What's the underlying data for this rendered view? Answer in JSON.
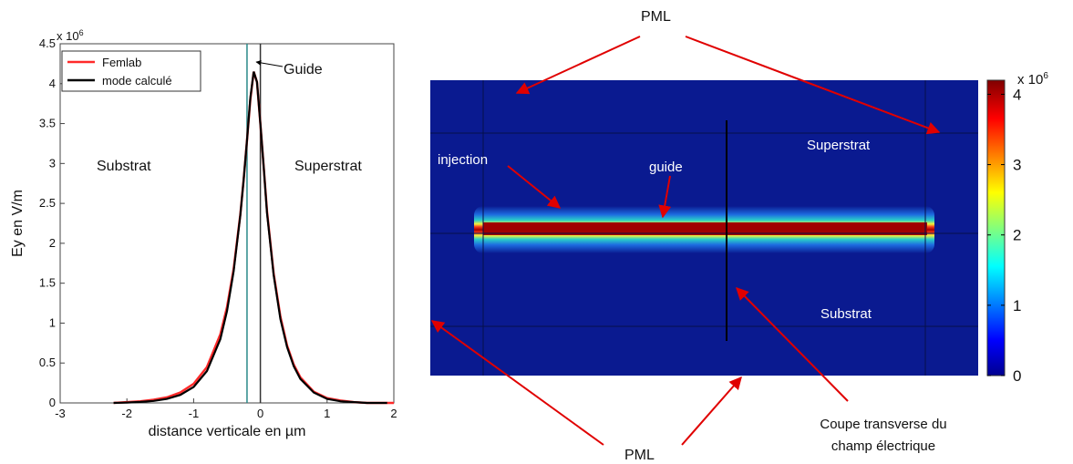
{
  "chart_data": [
    {
      "type": "line",
      "xlabel": "distance verticale en µm",
      "ylabel": "Ey en V/m",
      "y_multiplier": "x 10",
      "y_multiplier_exp": "6",
      "xlim": [
        -3,
        2
      ],
      "ylim": [
        0,
        4.5
      ],
      "x_ticks": [
        "-3",
        "-2",
        "-1",
        "0",
        "1",
        "2"
      ],
      "y_ticks": [
        "0",
        "0.5",
        "1",
        "1.5",
        "2",
        "2.5",
        "3",
        "3.5",
        "4",
        "4.5"
      ],
      "legend_position": "top-left",
      "series": [
        {
          "name": "Femlab",
          "color": "#ff2a2a",
          "x": [
            -2.2,
            -2.0,
            -1.8,
            -1.6,
            -1.4,
            -1.2,
            -1.0,
            -0.8,
            -0.6,
            -0.5,
            -0.4,
            -0.3,
            -0.25,
            -0.2,
            -0.15,
            -0.1,
            -0.05,
            0.0,
            0.05,
            0.1,
            0.2,
            0.3,
            0.4,
            0.5,
            0.6,
            0.8,
            1.0,
            1.2,
            1.4,
            1.6,
            1.8,
            2.0
          ],
          "y": [
            0.0,
            0.01,
            0.02,
            0.04,
            0.07,
            0.13,
            0.24,
            0.45,
            0.86,
            1.2,
            1.68,
            2.36,
            2.8,
            3.3,
            3.8,
            4.15,
            4.02,
            3.5,
            2.95,
            2.4,
            1.62,
            1.08,
            0.72,
            0.48,
            0.32,
            0.14,
            0.06,
            0.03,
            0.01,
            0.0,
            0.0,
            0.0
          ]
        },
        {
          "name": "mode calculé",
          "color": "#000000",
          "x": [
            -2.2,
            -2.0,
            -1.8,
            -1.6,
            -1.4,
            -1.2,
            -1.0,
            -0.8,
            -0.6,
            -0.5,
            -0.4,
            -0.3,
            -0.25,
            -0.2,
            -0.15,
            -0.1,
            -0.05,
            0.0,
            0.05,
            0.1,
            0.2,
            0.3,
            0.4,
            0.5,
            0.6,
            0.8,
            1.0,
            1.2,
            1.4,
            1.6,
            1.8,
            1.9
          ],
          "y": [
            0.0,
            0.005,
            0.012,
            0.025,
            0.05,
            0.1,
            0.2,
            0.4,
            0.8,
            1.15,
            1.65,
            2.35,
            2.8,
            3.3,
            3.82,
            4.15,
            4.02,
            3.5,
            2.95,
            2.38,
            1.6,
            1.05,
            0.7,
            0.46,
            0.3,
            0.13,
            0.05,
            0.02,
            0.01,
            0.0,
            0.0,
            0.0
          ]
        }
      ],
      "vertical_lines": [
        -0.2,
        0.0
      ],
      "annotations": {
        "guide": "Guide",
        "substrat": "Substrat",
        "superstrat": "Superstrat"
      }
    },
    {
      "type": "heatmap",
      "colorbar": {
        "multiplier": "x 10",
        "multiplier_exp": "6",
        "ticks": [
          "0",
          "1",
          "2",
          "3",
          "4"
        ],
        "range": [
          0,
          4.2
        ]
      },
      "labels": {
        "pml_top": "PML",
        "pml_bottom": "PML",
        "injection": "injection",
        "guide": "guide",
        "superstrat": "Superstrat",
        "substrat": "Substrat",
        "coupe_line1": "Coupe transverse du",
        "coupe_line2": "champ électrique"
      },
      "colors": {
        "background_field": "#0a1a90",
        "guide_core": "#a00000",
        "arrows": "#e00000"
      }
    }
  ]
}
